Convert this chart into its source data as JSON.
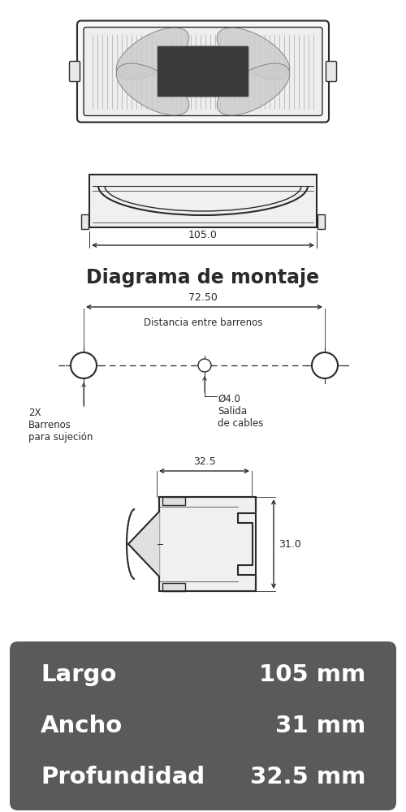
{
  "bg_color": "#ffffff",
  "line_color": "#2a2a2a",
  "title_montaje": "Diagrama de montaje",
  "dim_largo_label": "105.0",
  "dim_72_label": "72.50",
  "dim_dist_label": "Distancia entre barrenos",
  "dim_32_label": "32.5",
  "dim_31_label": "31.0",
  "dim_diam_label": "Ø4.0",
  "salida_label": "Salida\nde cables",
  "barrenos_label": "2X\nBarrenos\npara sujeción",
  "specs_bg": "#5a5a5a",
  "specs_text_color": "#ffffff",
  "specs": [
    [
      "Largo",
      "105 mm"
    ],
    [
      "Ancho",
      "31 mm"
    ],
    [
      "Profundidad",
      "32.5 mm"
    ]
  ]
}
